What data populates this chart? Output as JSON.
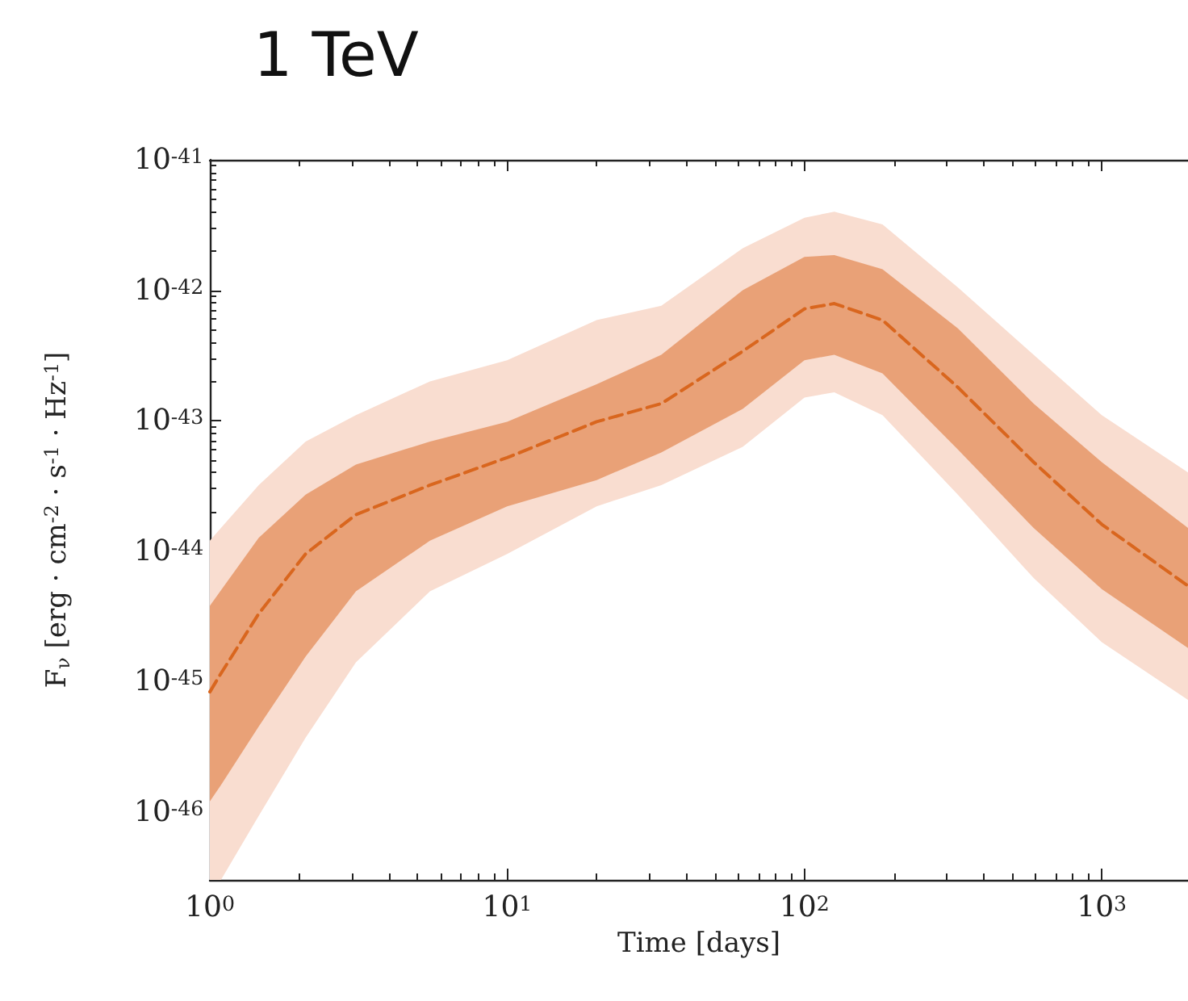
{
  "chart_data": {
    "type": "line",
    "title": "1 TeV",
    "xlabel": "Time [days]",
    "ylabel": "F$_{ν}$ [erg · cm$^{-2}$ · s$^{-1}$ · Hz$^{-1}$]",
    "log": "xy",
    "marker": "none",
    "x": [
      1,
      1.09,
      1.46,
      2.1,
      3.1,
      5.5,
      10,
      20,
      33,
      62,
      100,
      126,
      183,
      328,
      590,
      1000,
      1950
    ],
    "series": [
      {
        "color": "#d9661e",
        "line_style": "dashed",
        "values": [
          8.3e-46,
          1.15e-45,
          3.3e-45,
          9.5e-45,
          1.9e-44,
          3.2e-44,
          5.2e-44,
          9.8e-44,
          1.35e-43,
          3.4e-43,
          7.2e-43,
          7.9e-43,
          5.9e-43,
          1.8e-43,
          4.8e-44,
          1.6e-44,
          5.4e-45
        ],
        "lower": [
          1.2e-46,
          1.6e-46,
          4.5e-46,
          1.55e-45,
          4.9e-45,
          1.2e-44,
          2.2e-44,
          3.5e-44,
          5.7e-44,
          1.23e-43,
          2.9e-43,
          3.2e-43,
          2.3e-43,
          6e-44,
          1.5e-44,
          5.1e-45,
          1.8e-45
        ],
        "upper": [
          3.8e-45,
          5e-45,
          1.26e-44,
          2.7e-44,
          4.6e-44,
          6.9e-44,
          9.8e-44,
          1.9e-43,
          3.2e-43,
          1e-42,
          1.8e-42,
          1.86e-42,
          1.45e-42,
          5.1e-43,
          1.35e-43,
          4.8e-44,
          1.5e-44
        ]
      },
      {
        "color": "#f9ddd0",
        "values": [
          null,
          null,
          null,
          null,
          null,
          null,
          null,
          null,
          null,
          null,
          null,
          null,
          null,
          null,
          null,
          null,
          null
        ],
        "lower": [
          3e-47,
          3e-47,
          9.3e-47,
          3.7e-46,
          1.4e-45,
          4.9e-45,
          9.5e-45,
          2.2e-44,
          3.2e-44,
          6.3e-44,
          1.5e-43,
          1.65e-43,
          1.1e-43,
          2.7e-44,
          6.2e-45,
          2e-45,
          7.2e-46
        ],
        "upper": [
          1.2e-44,
          1.5e-44,
          3.2e-44,
          6.9e-44,
          1.1e-43,
          2e-43,
          2.9e-43,
          5.9e-43,
          7.6e-43,
          2.1e-42,
          3.6e-42,
          4e-42,
          3.2e-42,
          1.05e-42,
          3.2e-43,
          1.1e-43,
          4e-44
        ]
      }
    ],
    "xlim": [
      1,
      1950
    ],
    "ylim": [
      3e-47,
      1e-41
    ],
    "xticks": [
      {
        "value": 1,
        "label": "10$^{0}$"
      },
      {
        "value": 10,
        "label": "10$^{1}$"
      },
      {
        "value": 100,
        "label": "10$^{2}$"
      },
      {
        "value": 1000,
        "label": "10$^{3}$"
      }
    ],
    "yticks": [
      {
        "value": 1e-46,
        "label": "10$^{-46}$"
      },
      {
        "value": 1e-45,
        "label": "10$^{-45}$"
      },
      {
        "value": 1e-44,
        "label": "10$^{-44}$"
      },
      {
        "value": 1e-43,
        "label": "10$^{-43}$"
      },
      {
        "value": 1e-42,
        "label": "10$^{-42}$"
      },
      {
        "value": 1e-41,
        "label": "10$^{-41}$"
      }
    ]
  }
}
